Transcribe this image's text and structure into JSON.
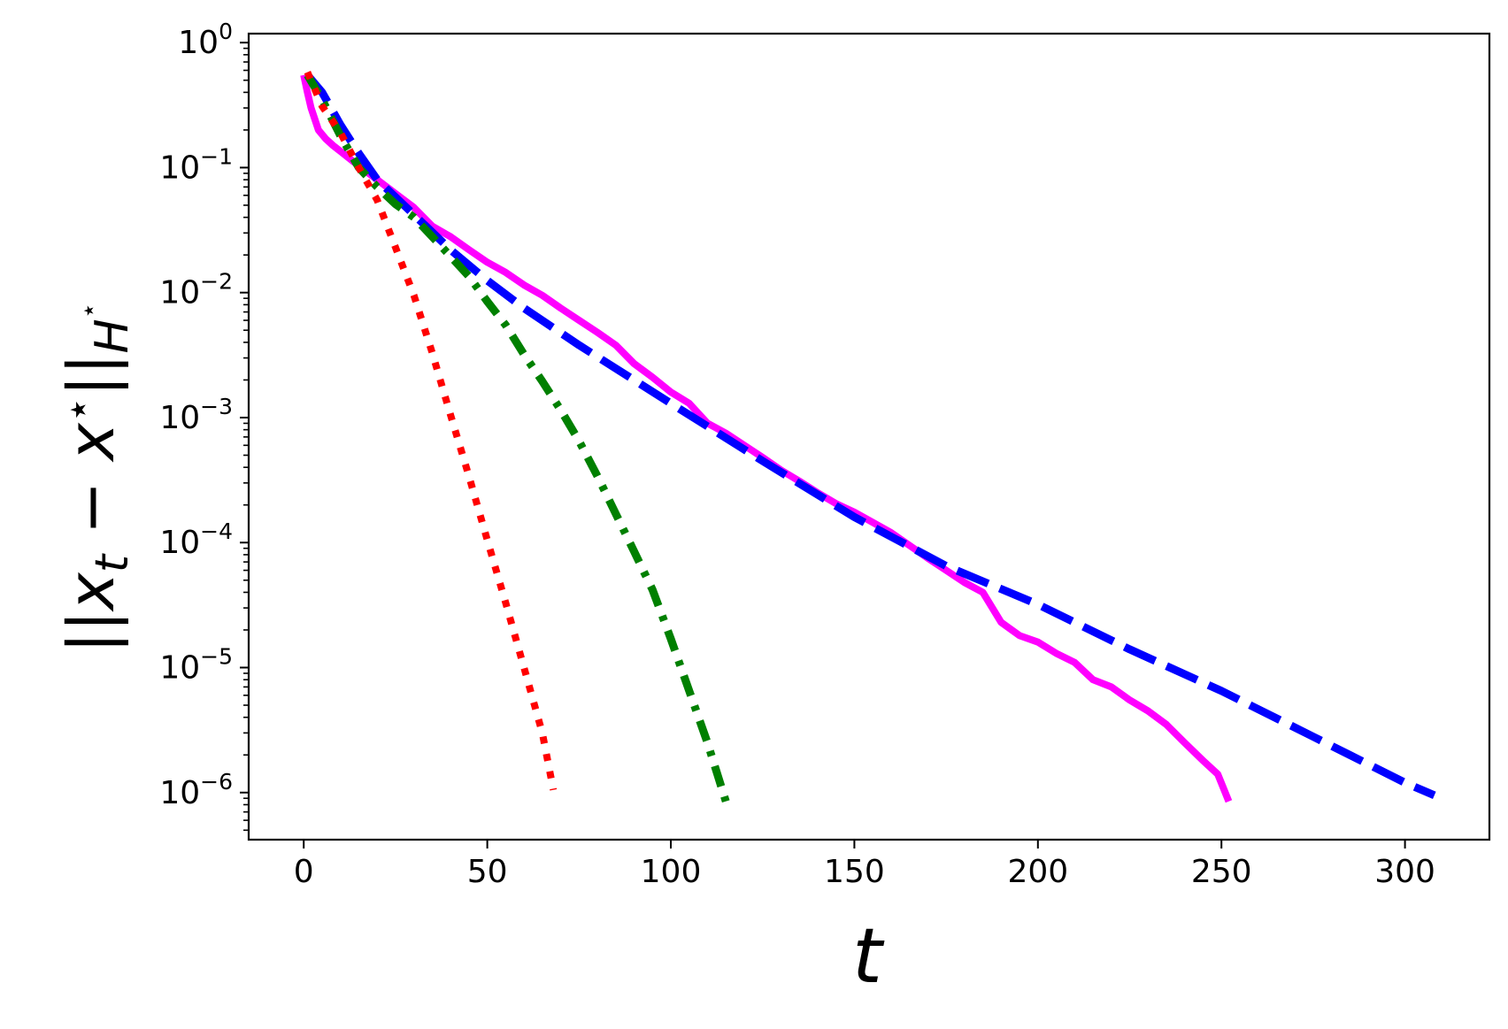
{
  "chart_data": {
    "type": "line",
    "xlabel": "t",
    "ylabel": "||x_t − x⋆||_H⋆",
    "ylabel_parts": {
      "open": "||x",
      "sub": "t",
      "minus": " − x",
      "star": "⋆",
      "close": "||",
      "sub2": "H",
      "sup2": "⋆"
    },
    "xlim": [
      -15,
      323
    ],
    "ylim": [
      4.2e-07,
      1.18
    ],
    "yscale": "log",
    "grid": false,
    "x_ticks": [
      0,
      50,
      100,
      150,
      200,
      250,
      300
    ],
    "x_tick_labels": [
      "0",
      "50",
      "100",
      "150",
      "200",
      "250",
      "300"
    ],
    "y_ticks": [
      {
        "value": 1,
        "base": "10",
        "exp": "0"
      },
      {
        "value": 0.1,
        "base": "10",
        "exp": "−1"
      },
      {
        "value": 0.01,
        "base": "10",
        "exp": "−2"
      },
      {
        "value": 0.001,
        "base": "10",
        "exp": "−3"
      },
      {
        "value": 0.0001,
        "base": "10",
        "exp": "−4"
      },
      {
        "value": 1e-05,
        "base": "10",
        "exp": "−5"
      },
      {
        "value": 1e-06,
        "base": "10",
        "exp": "−6"
      }
    ],
    "series": [
      {
        "color": "#ff00ff",
        "style": "solid",
        "x": [
          0,
          1,
          2,
          4,
          6,
          8,
          10,
          13,
          16,
          20,
          25,
          30,
          35,
          40,
          45,
          50,
          55,
          60,
          65,
          70,
          75,
          80,
          85,
          90,
          95,
          100,
          105,
          110,
          115,
          120,
          125,
          130,
          135,
          140,
          145,
          150,
          155,
          160,
          165,
          170,
          175,
          180,
          185,
          190,
          195,
          200,
          205,
          210,
          215,
          220,
          225,
          230,
          235,
          240,
          245,
          249,
          252
        ],
        "y": [
          0.55,
          0.4,
          0.3,
          0.2,
          0.17,
          0.15,
          0.135,
          0.115,
          0.098,
          0.08,
          0.062,
          0.048,
          0.034,
          0.028,
          0.022,
          0.0175,
          0.0145,
          0.0115,
          0.0095,
          0.0075,
          0.006,
          0.0048,
          0.0038,
          0.0027,
          0.0021,
          0.0016,
          0.0013,
          0.0009,
          0.00075,
          0.0006,
          0.00048,
          0.00038,
          0.00031,
          0.00025,
          0.000205,
          0.000175,
          0.000145,
          0.00012,
          9.5e-05,
          7.5e-05,
          6e-05,
          4.8e-05,
          4e-05,
          2.3e-05,
          1.8e-05,
          1.6e-05,
          1.3e-05,
          1.1e-05,
          8e-06,
          7e-06,
          5.5e-06,
          4.5e-06,
          3.5e-06,
          2.5e-06,
          1.8e-06,
          1.4e-06,
          8.5e-07
        ]
      },
      {
        "color": "#0000ff",
        "style": "dashed",
        "x": [
          1,
          5,
          10,
          15,
          20,
          30,
          40,
          50,
          60,
          75,
          100,
          125,
          150,
          175,
          200,
          225,
          250,
          275,
          300,
          308
        ],
        "y": [
          0.55,
          0.4,
          0.22,
          0.13,
          0.08,
          0.042,
          0.022,
          0.0125,
          0.0075,
          0.0038,
          0.0013,
          0.00045,
          0.00016,
          6.5e-05,
          3.2e-05,
          1.4e-05,
          6.5e-06,
          2.8e-06,
          1.2e-06,
          9.5e-07
        ]
      },
      {
        "color": "#008000",
        "style": "dashdot",
        "x": [
          1,
          5,
          10,
          15,
          20,
          25,
          30,
          35,
          40,
          45,
          50,
          55,
          60,
          65,
          70,
          75,
          80,
          85,
          90,
          95,
          100,
          105,
          110,
          115
        ],
        "y": [
          0.55,
          0.35,
          0.18,
          0.1,
          0.07,
          0.051,
          0.04,
          0.028,
          0.0195,
          0.0135,
          0.0085,
          0.0055,
          0.0032,
          0.00195,
          0.00115,
          0.00065,
          0.00034,
          0.00017,
          8.5e-05,
          4.2e-05,
          1.7e-05,
          6.5e-06,
          2.5e-06,
          8.5e-07
        ]
      },
      {
        "color": "#ff0000",
        "style": "dotted",
        "x": [
          1,
          5,
          10,
          15,
          20,
          25,
          30,
          35,
          40,
          45,
          50,
          55,
          60,
          65,
          68
        ],
        "y": [
          0.58,
          0.31,
          0.19,
          0.1,
          0.055,
          0.023,
          0.0095,
          0.0033,
          0.00105,
          0.00034,
          0.000105,
          3.3e-05,
          1e-05,
          3e-06,
          1.05e-06
        ]
      }
    ]
  }
}
